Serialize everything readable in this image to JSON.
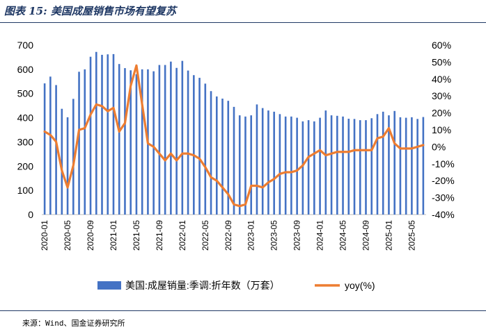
{
  "page": {
    "title": "图表 15: 美国成屋销售市场有望复苏",
    "source": "来源：Wind、国金证券研究所"
  },
  "colors": {
    "bar": "#4472c4",
    "line": "#ed7d31",
    "rule": "#1f3864"
  },
  "chart_data": {
    "type": "bar",
    "title": "",
    "x_ticks": [
      "2020-01",
      "2020-05",
      "2020-09",
      "2021-01",
      "2021-05",
      "2021-09",
      "2022-01",
      "2022-05",
      "2022-09",
      "2023-01",
      "2023-05",
      "2023-09",
      "2024-01",
      "2024-05",
      "2024-09",
      "2025-01",
      "2025-05"
    ],
    "y_left": {
      "ticks": [
        "0",
        "100",
        "200",
        "300",
        "400",
        "500",
        "600",
        "700"
      ],
      "lim": [
        0,
        700
      ]
    },
    "y_right": {
      "ticks": [
        "-40%",
        "-30%",
        "-20%",
        "-10%",
        "0%",
        "10%",
        "20%",
        "30%",
        "40%",
        "50%",
        "60%"
      ],
      "lim": [
        -40,
        60
      ]
    },
    "legend_position": "bottom",
    "categories": [
      "2020-01",
      "2020-02",
      "2020-03",
      "2020-04",
      "2020-05",
      "2020-06",
      "2020-07",
      "2020-08",
      "2020-09",
      "2020-10",
      "2020-11",
      "2020-12",
      "2021-01",
      "2021-02",
      "2021-03",
      "2021-04",
      "2021-05",
      "2021-06",
      "2021-07",
      "2021-08",
      "2021-09",
      "2021-10",
      "2021-11",
      "2021-12",
      "2022-01",
      "2022-02",
      "2022-03",
      "2022-04",
      "2022-05",
      "2022-06",
      "2022-07",
      "2022-08",
      "2022-09",
      "2022-10",
      "2022-11",
      "2022-12",
      "2023-01",
      "2023-02",
      "2023-03",
      "2023-04",
      "2023-05",
      "2023-06",
      "2023-07",
      "2023-08",
      "2023-09",
      "2023-10",
      "2023-11",
      "2023-12",
      "2024-01",
      "2024-02",
      "2024-03",
      "2024-04",
      "2024-05",
      "2024-06",
      "2024-07",
      "2024-08",
      "2024-09",
      "2024-10",
      "2024-11",
      "2024-12",
      "2025-01",
      "2025-02",
      "2025-03",
      "2025-04",
      "2025-05",
      "2025-06",
      "2025-07"
    ],
    "series": [
      {
        "name": "美国:成屋销量:季调:折年数（万套）",
        "type": "bar",
        "axis": "left",
        "values": [
          542,
          570,
          535,
          437,
          402,
          478,
          590,
          600,
          652,
          672,
          660,
          662,
          663,
          622,
          605,
          596,
          580,
          600,
          600,
          592,
          618,
          618,
          632,
          606,
          635,
          595,
          576,
          565,
          541,
          510,
          488,
          479,
          470,
          445,
          410,
          405,
          410,
          455,
          440,
          430,
          425,
          415,
          405,
          405,
          400,
          385,
          390,
          385,
          400,
          430,
          410,
          408,
          405,
          396,
          395,
          390,
          390,
          398,
          415,
          425,
          410,
          428,
          402,
          400,
          402,
          395,
          403
        ]
      },
      {
        "name": "yoy(%)",
        "type": "line",
        "axis": "right",
        "values": [
          9,
          7,
          3,
          -14,
          -24,
          -11,
          10,
          11,
          19,
          25,
          24,
          21,
          23,
          9,
          14,
          36,
          48,
          25,
          2,
          0,
          -4,
          -8,
          -4,
          -8,
          -4,
          -4,
          -5,
          -7,
          -12,
          -18,
          -20,
          -24,
          -28,
          -34,
          -35,
          -34,
          -23,
          -23,
          -24,
          -21,
          -19,
          -16,
          -15,
          -15,
          -14,
          -11,
          -6,
          -4,
          -2,
          -5,
          -4,
          -3,
          -3,
          -3,
          -2,
          -2,
          -2,
          -2,
          5,
          6,
          11,
          2,
          -1,
          -1,
          -1,
          0,
          1
        ]
      }
    ]
  }
}
